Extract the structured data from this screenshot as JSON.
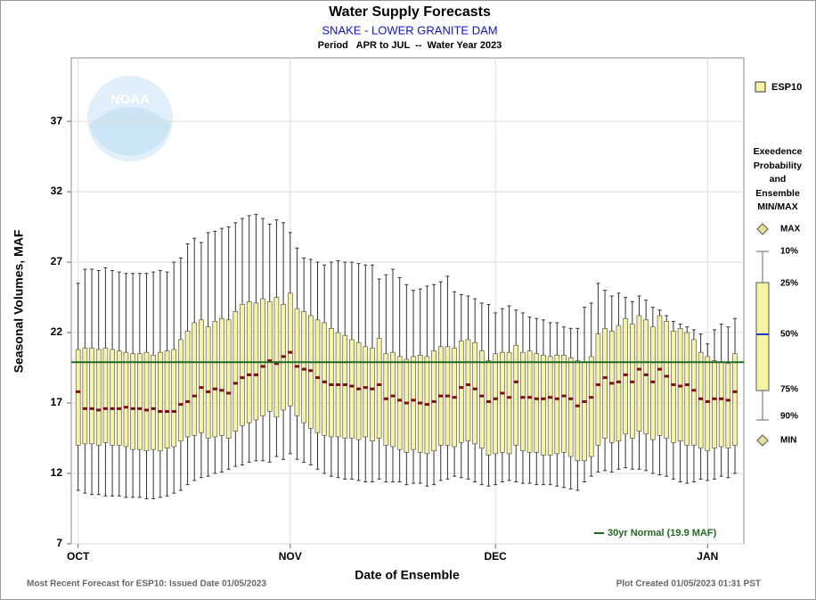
{
  "chart_data": {
    "type": "box",
    "title": "Water Supply Forecasts",
    "subtitle": "SNAKE - LOWER GRANITE DAM",
    "period": "Period   APR to JUL  --  Water Year 2023",
    "y_label": "Seasonal Volumes, MAF",
    "x_label": "Date of Ensemble",
    "footer_left": "Most Recent Forecast for ESP10: Issued Date 01/05/2023",
    "footer_right": "Plot Created 01/05/2023 01:31 PST",
    "logo_text": "NOAA",
    "series_name": "ESP10",
    "box_color": "#f7f3a0",
    "median_color": "#8b0a0a",
    "normal": 19.9,
    "normal_label": "30yr Normal (19.9 MAF)",
    "normal_color": "#1f6b1f",
    "legend_title": [
      "Exeedence",
      "Probability",
      "and",
      "Ensemble",
      "MIN/MAX"
    ],
    "legend_max": "MAX",
    "legend_min": "MIN",
    "grid": true,
    "ylim": [
      7,
      41.5
    ],
    "yticks": [
      7,
      12,
      17,
      22,
      27,
      32,
      37
    ],
    "xlim": [
      -1,
      97.3
    ],
    "xticks": [
      {
        "value": 0,
        "label": "OCT"
      },
      {
        "value": 31,
        "label": "NOV"
      },
      {
        "value": 61,
        "label": "DEC"
      },
      {
        "value": 92,
        "label": "JAN"
      }
    ],
    "x": [
      0,
      1,
      2,
      3,
      4,
      5,
      6,
      7,
      8,
      9,
      10,
      11,
      12,
      13,
      14,
      15,
      16,
      17,
      18,
      19,
      20,
      21,
      22,
      23,
      24,
      25,
      26,
      27,
      28,
      29,
      30,
      31,
      32,
      33,
      34,
      35,
      36,
      37,
      38,
      39,
      40,
      41,
      42,
      43,
      44,
      45,
      46,
      47,
      48,
      49,
      50,
      51,
      52,
      53,
      54,
      55,
      56,
      57,
      58,
      59,
      60,
      61,
      62,
      63,
      64,
      65,
      66,
      67,
      68,
      69,
      70,
      71,
      72,
      73,
      74,
      75,
      76,
      77,
      78,
      79,
      80,
      81,
      82,
      83,
      84,
      85,
      86,
      87,
      88,
      89,
      90,
      91,
      92,
      93,
      94,
      95,
      96
    ],
    "percentiles": [
      {
        "name": "10%",
        "values": [
          25.5,
          26.5,
          26.5,
          26.4,
          26.6,
          26.4,
          26.3,
          26.2,
          26.2,
          26.2,
          26.2,
          26.3,
          26.4,
          26.3,
          27.0,
          27.3,
          28.3,
          28.7,
          28.4,
          29.1,
          29.2,
          29.4,
          29.5,
          29.8,
          30.1,
          30.3,
          30.4,
          30.1,
          29.7,
          30.0,
          29.8,
          29.1,
          28.0,
          27.3,
          27.2,
          27.0,
          26.8,
          27.0,
          27.1,
          27.0,
          27.0,
          26.9,
          26.8,
          26.8,
          25.8,
          26.1,
          26.5,
          25.9,
          25.4,
          25.0,
          25.1,
          25.3,
          25.4,
          25.6,
          26.0,
          24.9,
          24.7,
          24.6,
          24.4,
          24.1,
          24.0,
          23.4,
          23.7,
          23.9,
          23.6,
          23.4,
          23.1,
          23.0,
          22.9,
          22.7,
          22.7,
          22.4,
          22.3,
          22.3,
          23.8,
          24.1,
          25.5,
          25.0,
          24.6,
          24.8,
          24.5,
          24.2,
          24.6,
          24.3,
          23.8,
          23.6,
          23.2,
          22.8,
          22.6,
          22.4,
          22.2,
          21.9,
          21.2,
          22.2,
          22.6,
          22.4,
          23.0
        ]
      },
      {
        "name": "25%",
        "values": [
          20.8,
          20.9,
          20.9,
          20.8,
          20.9,
          20.8,
          20.7,
          20.6,
          20.5,
          20.5,
          20.6,
          20.4,
          20.6,
          20.7,
          20.8,
          21.5,
          22.1,
          22.7,
          22.9,
          22.4,
          22.8,
          23.0,
          22.9,
          23.5,
          24.0,
          24.2,
          24.1,
          24.4,
          24.2,
          24.5,
          24.0,
          24.8,
          23.7,
          23.5,
          23.2,
          22.9,
          22.7,
          22.3,
          22.0,
          21.8,
          21.5,
          21.3,
          21.0,
          20.9,
          21.6,
          20.5,
          20.6,
          20.3,
          20.1,
          20.3,
          20.4,
          20.3,
          20.7,
          21.0,
          21.0,
          20.9,
          21.4,
          21.5,
          21.3,
          20.7,
          20.0,
          20.5,
          20.6,
          20.6,
          21.1,
          20.6,
          20.7,
          20.5,
          20.4,
          20.3,
          20.4,
          20.4,
          20.2,
          20.0,
          19.9,
          20.3,
          21.9,
          22.3,
          22.1,
          22.5,
          23.0,
          22.6,
          23.2,
          22.9,
          22.4,
          23.2,
          22.8,
          22.1,
          22.3,
          22.0,
          21.5,
          20.6,
          20.3,
          20.0,
          19.9,
          19.8,
          20.5
        ]
      },
      {
        "name": "50%",
        "values": [
          17.8,
          16.6,
          16.6,
          16.5,
          16.6,
          16.6,
          16.6,
          16.7,
          16.6,
          16.6,
          16.5,
          16.6,
          16.4,
          16.4,
          16.4,
          16.9,
          17.1,
          17.5,
          18.1,
          17.8,
          18.0,
          17.9,
          17.7,
          18.4,
          18.8,
          19.0,
          19.0,
          19.6,
          20.0,
          19.8,
          20.3,
          20.6,
          19.6,
          19.4,
          19.3,
          18.8,
          18.5,
          18.3,
          18.3,
          18.3,
          18.2,
          18.0,
          18.1,
          18.0,
          18.3,
          17.3,
          17.5,
          17.2,
          17.0,
          17.2,
          17.0,
          16.9,
          17.1,
          17.5,
          17.5,
          17.4,
          18.1,
          18.3,
          18.0,
          17.5,
          17.1,
          17.3,
          17.7,
          17.4,
          18.5,
          17.4,
          17.4,
          17.3,
          17.3,
          17.4,
          17.3,
          17.5,
          17.3,
          16.8,
          17.1,
          17.4,
          18.3,
          18.8,
          18.4,
          18.5,
          19.0,
          18.5,
          19.4,
          19.0,
          18.5,
          19.4,
          18.9,
          18.3,
          18.2,
          18.3,
          17.9,
          17.3,
          17.1,
          17.3,
          17.3,
          17.2,
          17.8
        ]
      },
      {
        "name": "75%",
        "values": [
          14.0,
          14.1,
          14.1,
          14.0,
          14.2,
          14.0,
          14.0,
          13.9,
          13.7,
          13.7,
          13.6,
          13.7,
          13.6,
          13.8,
          13.9,
          14.3,
          14.6,
          14.7,
          14.9,
          14.5,
          14.6,
          14.7,
          14.5,
          15.0,
          15.4,
          15.6,
          15.8,
          16.1,
          16.4,
          16.0,
          16.5,
          16.8,
          16.1,
          15.6,
          15.2,
          14.9,
          14.7,
          14.6,
          14.6,
          14.5,
          14.5,
          14.4,
          14.6,
          14.3,
          14.5,
          14.0,
          13.9,
          13.7,
          13.5,
          13.7,
          13.5,
          13.4,
          13.6,
          14.0,
          14.0,
          13.9,
          14.2,
          14.3,
          14.1,
          13.8,
          13.3,
          13.4,
          13.5,
          13.4,
          14.0,
          13.6,
          13.5,
          13.5,
          13.3,
          13.3,
          13.4,
          13.5,
          13.2,
          12.9,
          12.9,
          13.2,
          14.0,
          14.5,
          14.2,
          14.3,
          14.8,
          14.5,
          15.0,
          14.8,
          14.4,
          14.7,
          14.5,
          14.2,
          14.3,
          14.0,
          14.0,
          13.8,
          13.6,
          13.8,
          13.9,
          13.8,
          14.0
        ]
      },
      {
        "name": "90%",
        "values": [
          10.8,
          10.6,
          10.5,
          10.5,
          10.4,
          10.4,
          10.4,
          10.3,
          10.3,
          10.3,
          10.2,
          10.2,
          10.3,
          10.4,
          10.6,
          10.8,
          11.2,
          11.5,
          11.7,
          11.8,
          12.0,
          12.1,
          12.3,
          12.5,
          12.6,
          12.8,
          12.9,
          12.9,
          12.8,
          13.2,
          13.0,
          13.4,
          13.0,
          12.8,
          12.6,
          12.3,
          12.0,
          11.8,
          11.7,
          11.6,
          11.6,
          11.5,
          11.4,
          11.4,
          11.6,
          11.4,
          11.4,
          11.4,
          11.2,
          11.3,
          11.3,
          11.1,
          11.2,
          11.5,
          11.6,
          11.8,
          11.7,
          11.6,
          11.4,
          11.2,
          11.1,
          11.2,
          11.4,
          11.5,
          11.4,
          11.3,
          11.3,
          11.2,
          11.2,
          11.2,
          11.1,
          11.0,
          10.9,
          10.8,
          11.4,
          11.8,
          12.1,
          12.2,
          12.1,
          12.3,
          12.4,
          12.3,
          12.3,
          12.2,
          12.0,
          11.9,
          11.8,
          11.6,
          11.4,
          11.3,
          11.4,
          11.6,
          11.5,
          11.6,
          11.8,
          11.7,
          12.0
        ]
      }
    ]
  }
}
